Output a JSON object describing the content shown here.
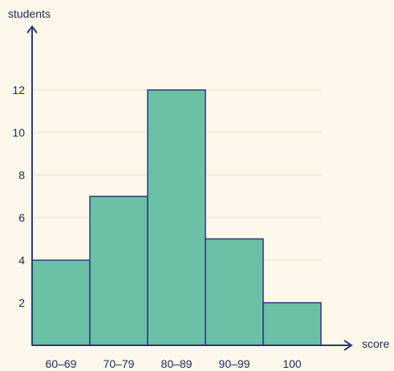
{
  "chart_data": {
    "type": "bar",
    "title": "",
    "xlabel": "score",
    "ylabel": "students",
    "categories": [
      "60–69",
      "70–79",
      "80–89",
      "90–99",
      "100"
    ],
    "values": [
      4,
      7,
      12,
      5,
      2
    ],
    "yticks": [
      2,
      4,
      6,
      8,
      10,
      12
    ],
    "ylim": [
      0,
      14
    ],
    "grid": true,
    "bar_color": "#6cc0a5",
    "bar_edge_color": "#2b3a7a",
    "axis_color": "#2b3a7a",
    "grid_color": "#e6e1cc"
  }
}
